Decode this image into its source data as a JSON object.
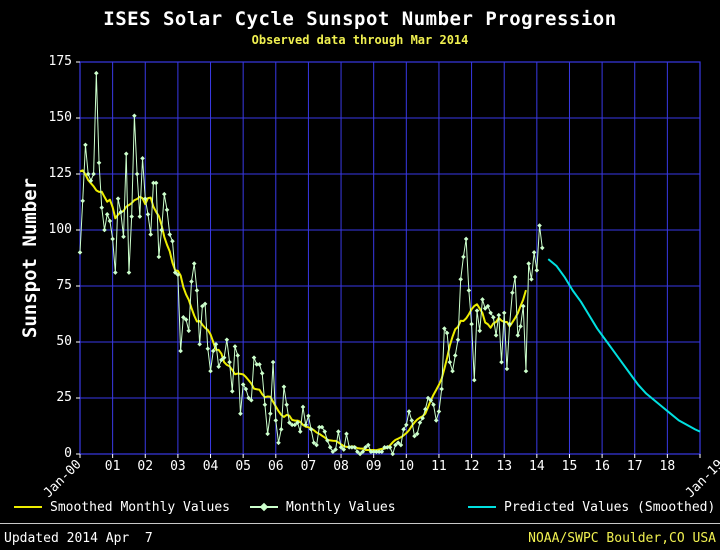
{
  "page": {
    "title": "ISES Solar Cycle Sunspot Number Progression",
    "subtitle": "Observed data through Mar 2014",
    "footer_left": "Updated 2014 Apr  7",
    "footer_right": "NOAA/SWPC Boulder,CO USA"
  },
  "legend": {
    "smoothed": "Smoothed Monthly Values",
    "monthly": "Monthly Values",
    "predicted": "Predicted Values (Smoothed)"
  },
  "colors": {
    "background": "#000000",
    "grid": "#3939e6",
    "monthly": "#ccffcc",
    "smoothed": "#eded00",
    "predicted": "#00e0e0",
    "title_text": "#ffffff",
    "accent_text": "#f0f050"
  },
  "chart_data": {
    "type": "line",
    "title": "ISES Solar Cycle Sunspot Number Progression",
    "subtitle": "Observed data through Mar 2014",
    "xlabel": "",
    "ylabel": "Sunspot Number",
    "ylim": [
      0,
      175
    ],
    "xlim_years": [
      2000,
      2019
    ],
    "grid": true,
    "legend_position": "bottom",
    "y_ticks": [
      0,
      25,
      50,
      75,
      100,
      125,
      150,
      175
    ],
    "x_ticks": [
      {
        "year": 2000,
        "label": "Jan-00",
        "rotated": true
      },
      {
        "year": 2001,
        "label": "01",
        "rotated": false
      },
      {
        "year": 2002,
        "label": "02",
        "rotated": false
      },
      {
        "year": 2003,
        "label": "03",
        "rotated": false
      },
      {
        "year": 2004,
        "label": "04",
        "rotated": false
      },
      {
        "year": 2005,
        "label": "05",
        "rotated": false
      },
      {
        "year": 2006,
        "label": "06",
        "rotated": false
      },
      {
        "year": 2007,
        "label": "07",
        "rotated": false
      },
      {
        "year": 2008,
        "label": "08",
        "rotated": false
      },
      {
        "year": 2009,
        "label": "09",
        "rotated": false
      },
      {
        "year": 2010,
        "label": "10",
        "rotated": false
      },
      {
        "year": 2011,
        "label": "11",
        "rotated": false
      },
      {
        "year": 2012,
        "label": "12",
        "rotated": false
      },
      {
        "year": 2013,
        "label": "13",
        "rotated": false
      },
      {
        "year": 2014,
        "label": "14",
        "rotated": false
      },
      {
        "year": 2015,
        "label": "15",
        "rotated": false
      },
      {
        "year": 2016,
        "label": "16",
        "rotated": false
      },
      {
        "year": 2017,
        "label": "17",
        "rotated": false
      },
      {
        "year": 2018,
        "label": "18",
        "rotated": false
      },
      {
        "year": 2019,
        "label": "Jan-19",
        "rotated": true
      }
    ],
    "series_notes": "monthly = observed monthly mean sunspot number Jan 2000 - Mar 2014; smoothed = 13-month running smoothing of monthly; predicted = forecast of smoothed values",
    "monthly": {
      "start_year": 2000.0,
      "step_years": 0.0833333,
      "values": [
        90,
        113,
        138,
        125,
        122,
        125,
        170,
        130,
        110,
        100,
        107,
        104,
        96,
        81,
        114,
        108,
        97,
        134,
        81,
        106,
        151,
        125,
        106,
        132,
        114,
        107,
        98,
        121,
        121,
        88,
        100,
        116,
        109,
        98,
        95,
        81,
        80,
        46,
        61,
        60,
        55,
        77,
        85,
        73,
        49,
        66,
        67,
        47,
        37,
        46,
        49,
        39,
        42,
        43,
        51,
        41,
        28,
        48,
        44,
        18,
        31,
        29,
        25,
        24,
        43,
        40,
        40,
        36,
        22,
        9,
        18,
        41,
        15,
        5,
        11,
        30,
        22,
        14,
        13,
        13,
        14,
        10,
        21,
        13,
        17,
        11,
        5,
        4,
        12,
        12,
        10,
        6,
        3,
        1,
        2,
        10,
        3,
        2,
        9,
        3,
        3,
        3,
        1,
        0,
        1,
        3,
        4,
        1,
        1,
        1,
        1,
        1,
        3,
        3,
        3,
        0,
        4,
        5,
        4,
        11,
        13,
        19,
        15,
        8,
        9,
        14,
        16,
        20,
        25,
        24,
        22,
        15,
        19,
        29,
        56,
        54,
        41,
        37,
        44,
        51,
        78,
        88,
        96,
        73,
        58,
        33,
        64,
        55,
        69,
        65,
        66,
        63,
        61,
        53,
        62,
        41,
        63,
        38,
        58,
        72,
        79,
        53,
        57,
        66,
        37,
        85,
        78,
        90,
        82,
        102,
        92
      ]
    },
    "predicted": {
      "x": [
        2014.35,
        2014.6,
        2014.85,
        2015.1,
        2015.35,
        2015.6,
        2015.85,
        2016.1,
        2016.35,
        2016.6,
        2016.85,
        2017.1,
        2017.35,
        2017.6,
        2017.85,
        2018.1,
        2018.35,
        2018.6,
        2018.85,
        2019.0
      ],
      "values": [
        87,
        84,
        79,
        73,
        68,
        62,
        56,
        51,
        46,
        41,
        36,
        31,
        27,
        24,
        21,
        18,
        15,
        13,
        11,
        10
      ]
    }
  }
}
